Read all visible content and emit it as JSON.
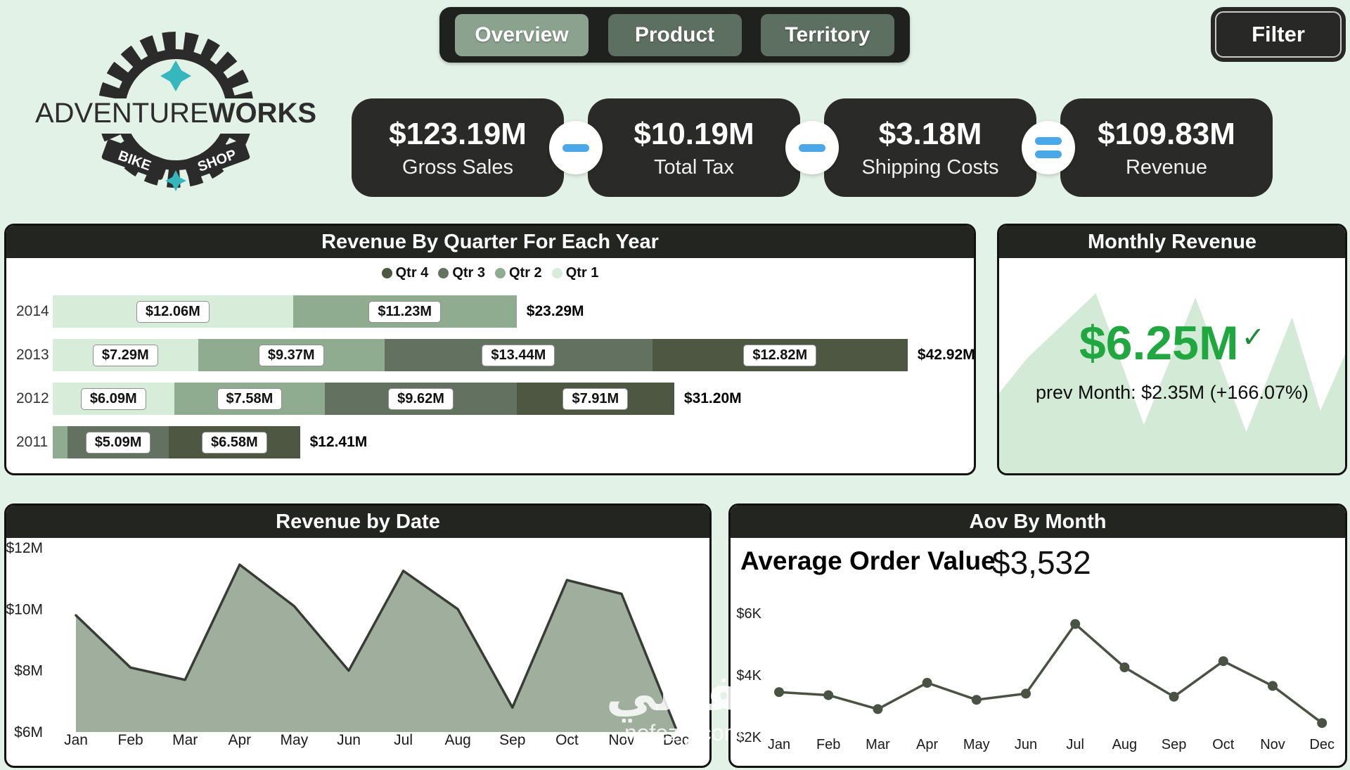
{
  "colors": {
    "bg": "#e3f2e6",
    "panel_header": "#232521",
    "card_dark": "#2a2b28",
    "accent_blue": "#4aa7e8",
    "tab_active": "#8ba28e",
    "tab_inactive": "#5d6f60",
    "q1": "#d8ecda",
    "q2": "#8fac91",
    "q3": "#627160",
    "q4": "#4d5742",
    "area_fill": "#a0ae9d",
    "area_stroke": "#373d35",
    "aov_line": "#4a5243",
    "kpi_green": "#21a73f",
    "spark_fill": "#d3ead6",
    "logo_teal": "#35b7bd"
  },
  "nav": {
    "tabs": [
      {
        "label": "Overview",
        "active": true
      },
      {
        "label": "Product",
        "active": false
      },
      {
        "label": "Territory",
        "active": false
      }
    ],
    "filter_label": "Filter"
  },
  "logo": {
    "name_regular": "ADVENTURE",
    "name_bold": "WORKS",
    "banner_left": "BIKE",
    "banner_right": "SHOP"
  },
  "kpi_flow": {
    "cards": [
      {
        "value": "$123.19M",
        "label": "Gross Sales"
      },
      {
        "value": "$10.19M",
        "label": "Total Tax"
      },
      {
        "value": "$3.18M",
        "label": "Shipping Costs"
      },
      {
        "value": "$109.83M",
        "label": "Revenue"
      }
    ],
    "operators": [
      "minus",
      "minus",
      "equals"
    ]
  },
  "watermark": {
    "title": "نفذلي",
    "site": "nofezly.com"
  },
  "chart_data": [
    {
      "type": "bar",
      "variant": "horizontal-stacked",
      "title": "Revenue By Quarter For Each Year",
      "unit": "$M",
      "legend": [
        {
          "name": "Qtr 4",
          "color": "#4d5742"
        },
        {
          "name": "Qtr 3",
          "color": "#627160"
        },
        {
          "name": "Qtr 2",
          "color": "#8fac91"
        },
        {
          "name": "Qtr 1",
          "color": "#d8ecda"
        }
      ],
      "rows": [
        {
          "year": "2014",
          "total": 23.29,
          "total_label": "$23.29M",
          "segments": [
            {
              "quarter": "Qtr 1",
              "value": 12.06,
              "label": "$12.06M"
            },
            {
              "quarter": "Qtr 2",
              "value": 11.23,
              "label": "$11.23M"
            }
          ]
        },
        {
          "year": "2013",
          "total": 42.92,
          "total_label": "$42.92M",
          "segments": [
            {
              "quarter": "Qtr 1",
              "value": 7.29,
              "label": "$7.29M"
            },
            {
              "quarter": "Qtr 2",
              "value": 9.37,
              "label": "$9.37M"
            },
            {
              "quarter": "Qtr 3",
              "value": 13.44,
              "label": "$13.44M"
            },
            {
              "quarter": "Qtr 4",
              "value": 12.82,
              "label": "$12.82M"
            }
          ]
        },
        {
          "year": "2012",
          "total": 31.2,
          "total_label": "$31.20M",
          "segments": [
            {
              "quarter": "Qtr 1",
              "value": 6.09,
              "label": "$6.09M"
            },
            {
              "quarter": "Qtr 2",
              "value": 7.58,
              "label": "$7.58M"
            },
            {
              "quarter": "Qtr 3",
              "value": 9.62,
              "label": "$9.62M"
            },
            {
              "quarter": "Qtr 4",
              "value": 7.91,
              "label": "$7.91M"
            }
          ]
        },
        {
          "year": "2011",
          "total": 12.41,
          "total_label": "$12.41M",
          "segments": [
            {
              "quarter": "Qtr 2",
              "value": 0.74,
              "label": ""
            },
            {
              "quarter": "Qtr 3",
              "value": 5.09,
              "label": "$5.09M"
            },
            {
              "quarter": "Qtr 4",
              "value": 6.58,
              "label": "$6.58M"
            }
          ]
        }
      ]
    },
    {
      "type": "area",
      "variant": "kpi-card",
      "title": "Monthly Revenue",
      "value": "$6.25M",
      "check": "✓",
      "note": "prev Month: $2.35M (+166.07%)"
    },
    {
      "type": "area",
      "title": "Revenue by Date",
      "categories": [
        "Jan",
        "Feb",
        "Mar",
        "Apr",
        "May",
        "Jun",
        "Jul",
        "Aug",
        "Sep",
        "Oct",
        "Nov",
        "Dec"
      ],
      "values": [
        9.8,
        8.1,
        7.7,
        11.45,
        10.1,
        8.0,
        11.25,
        10.0,
        6.8,
        10.95,
        10.5,
        6.1
      ],
      "unit": "$M",
      "ylim": [
        6,
        12
      ],
      "yticks": [
        {
          "label": "$12M",
          "value": 12
        },
        {
          "label": "$10M",
          "value": 10
        },
        {
          "label": "$8M",
          "value": 8
        },
        {
          "label": "$6M",
          "value": 6
        }
      ]
    },
    {
      "type": "line",
      "title": "Aov By Month",
      "label": "Average Order Value",
      "value": "$3,532",
      "categories": [
        "Jan",
        "Feb",
        "Mar",
        "Apr",
        "May",
        "Jun",
        "Jul",
        "Aug",
        "Sep",
        "Oct",
        "Nov",
        "Dec"
      ],
      "values": [
        3.45,
        3.35,
        2.9,
        3.75,
        3.2,
        3.4,
        5.65,
        4.25,
        3.3,
        4.45,
        3.65,
        2.45
      ],
      "unit": "$K",
      "ylim": [
        2,
        6
      ],
      "yticks": [
        {
          "label": "$6K",
          "value": 6
        },
        {
          "label": "$4K",
          "value": 4
        },
        {
          "label": "$2K",
          "value": 2
        }
      ]
    }
  ]
}
